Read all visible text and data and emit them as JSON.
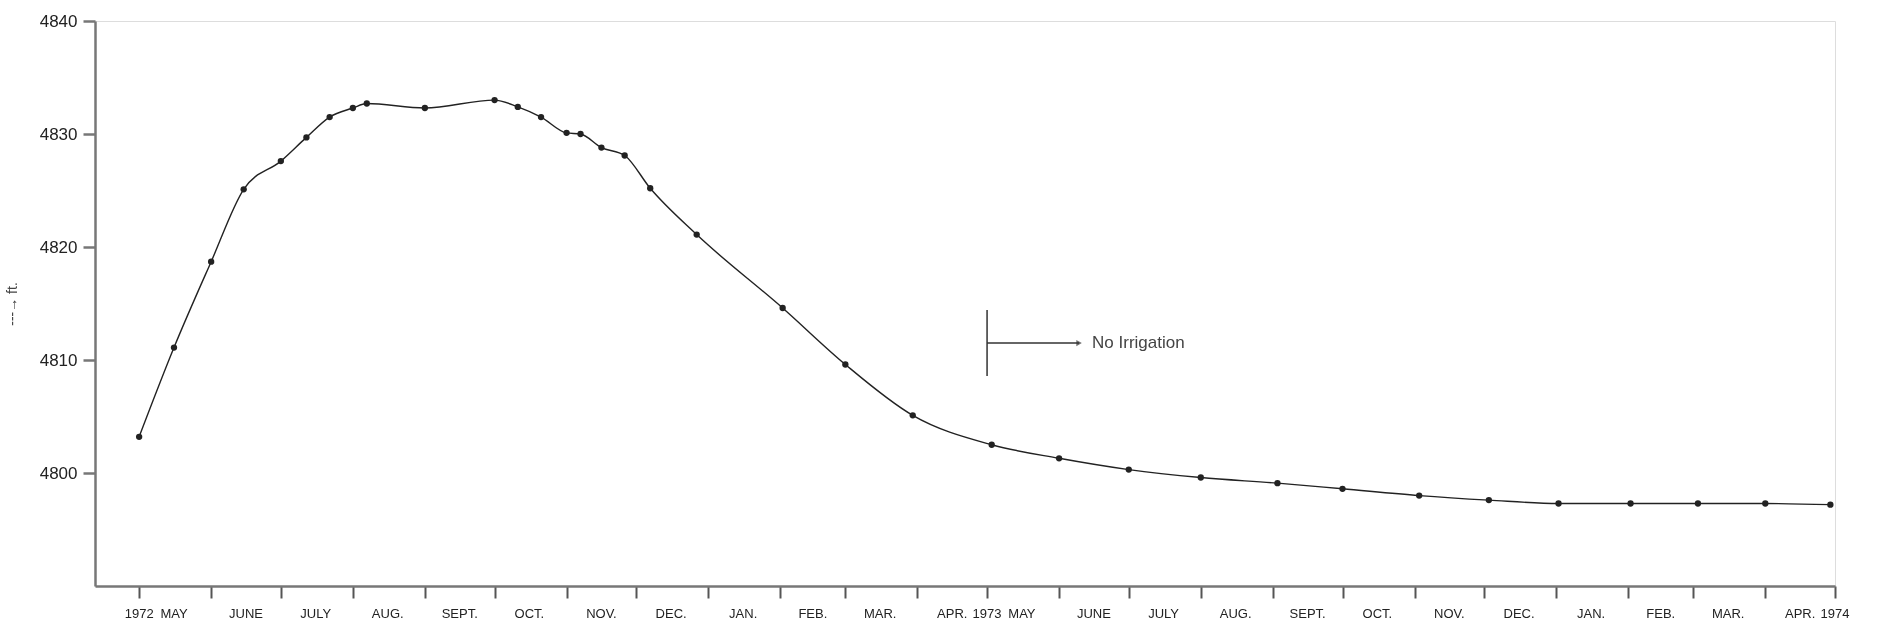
{
  "chart_data": {
    "type": "line",
    "ylabel": "---→ ft.",
    "x": [
      "1972-05-01",
      "1972-05-16",
      "1972-06-01",
      "1972-06-15",
      "1972-07-01",
      "1972-07-12",
      "1972-07-22",
      "1972-08-01",
      "1972-08-07",
      "1972-09-01",
      "1972-10-01",
      "1972-10-11",
      "1972-10-21",
      "1972-11-01",
      "1972-11-07",
      "1972-11-16",
      "1972-11-26",
      "1972-12-07",
      "1972-12-27",
      "1973-02-02",
      "1973-03-01",
      "1973-03-30",
      "1973-05-03",
      "1973-06-01",
      "1973-07-01",
      "1973-08-01",
      "1973-09-03",
      "1973-10-01",
      "1973-11-03",
      "1973-12-03",
      "1974-01-02",
      "1974-02-02",
      "1974-03-03",
      "1974-04-01",
      "1974-04-29"
    ],
    "series": [
      {
        "color": "#222222",
        "values": [
          4803.2,
          4811.1,
          4818.7,
          4825.1,
          4827.6,
          4829.7,
          4831.5,
          4832.3,
          4832.7,
          4832.3,
          4833.0,
          4832.4,
          4831.5,
          4830.1,
          4830.0,
          4828.8,
          4828.1,
          4825.2,
          4821.1,
          4814.6,
          4809.6,
          4805.1,
          4802.5,
          4801.3,
          4800.3,
          4799.6,
          4799.1,
          4798.6,
          4798.0,
          4797.6,
          4797.3,
          4797.3,
          4797.3,
          4797.3,
          4797.2
        ]
      }
    ],
    "xlim": [
      "1972-04-12",
      "1974-05-01"
    ],
    "xticks": [
      {
        "value": "1972-05-01",
        "label": "1972"
      },
      {
        "value": "1972-05-16",
        "label": "MAY"
      },
      {
        "value": "1972-06-01",
        "label": null
      },
      {
        "value": "1972-06-16",
        "label": "JUNE"
      },
      {
        "value": "1972-07-01",
        "label": null
      },
      {
        "value": "1972-07-16",
        "label": "JULY"
      },
      {
        "value": "1972-08-01",
        "label": null
      },
      {
        "value": "1972-08-16",
        "label": "AUG."
      },
      {
        "value": "1972-09-01",
        "label": null
      },
      {
        "value": "1972-09-16",
        "label": "SEPT."
      },
      {
        "value": "1972-10-01",
        "label": null
      },
      {
        "value": "1972-10-16",
        "label": "OCT."
      },
      {
        "value": "1972-11-01",
        "label": null
      },
      {
        "value": "1972-11-16",
        "label": "NOV."
      },
      {
        "value": "1972-12-01",
        "label": null
      },
      {
        "value": "1972-12-16",
        "label": "DEC."
      },
      {
        "value": "1973-01-01",
        "label": null
      },
      {
        "value": "1973-01-16",
        "label": "JAN."
      },
      {
        "value": "1973-02-01",
        "label": null
      },
      {
        "value": "1973-02-15",
        "label": "FEB."
      },
      {
        "value": "1973-03-01",
        "label": null
      },
      {
        "value": "1973-03-16",
        "label": "MAR."
      },
      {
        "value": "1973-04-01",
        "label": null
      },
      {
        "value": "1973-04-16",
        "label": "APR."
      },
      {
        "value": "1973-05-01",
        "label": "1973"
      },
      {
        "value": "1973-05-16",
        "label": "MAY"
      },
      {
        "value": "1973-06-01",
        "label": null
      },
      {
        "value": "1973-06-16",
        "label": "JUNE"
      },
      {
        "value": "1973-07-01",
        "label": null
      },
      {
        "value": "1973-07-16",
        "label": "JULY"
      },
      {
        "value": "1973-08-01",
        "label": null
      },
      {
        "value": "1973-08-16",
        "label": "AUG."
      },
      {
        "value": "1973-09-01",
        "label": null
      },
      {
        "value": "1973-09-16",
        "label": "SEPT."
      },
      {
        "value": "1973-10-01",
        "label": null
      },
      {
        "value": "1973-10-16",
        "label": "OCT."
      },
      {
        "value": "1973-11-01",
        "label": null
      },
      {
        "value": "1973-11-16",
        "label": "NOV."
      },
      {
        "value": "1973-12-01",
        "label": null
      },
      {
        "value": "1973-12-16",
        "label": "DEC."
      },
      {
        "value": "1974-01-01",
        "label": null
      },
      {
        "value": "1974-01-16",
        "label": "JAN."
      },
      {
        "value": "1974-02-01",
        "label": null
      },
      {
        "value": "1974-02-15",
        "label": "FEB."
      },
      {
        "value": "1974-03-01",
        "label": null
      },
      {
        "value": "1974-03-16",
        "label": "MAR."
      },
      {
        "value": "1974-04-01",
        "label": null
      },
      {
        "value": "1974-04-16",
        "label": "APR."
      },
      {
        "value": "1974-05-01",
        "label": "1974"
      }
    ],
    "ylim": [
      4790,
      4840
    ],
    "yticks": [
      4800,
      4810,
      4820,
      4830,
      4840
    ],
    "ref_lines": [
      {
        "axis": "x",
        "value": "1973-05-01",
        "label": "No Irrigation",
        "color": "#333333"
      }
    ],
    "grid": false,
    "marker": "circle",
    "line_style": "solid"
  }
}
